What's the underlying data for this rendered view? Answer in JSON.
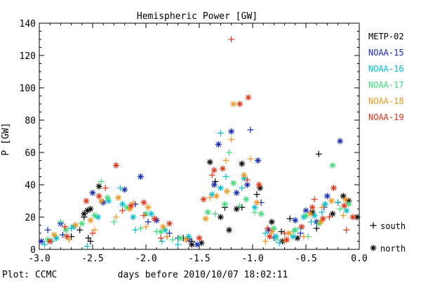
{
  "chart_data": {
    "type": "scatter",
    "title": "Hemispheric Power [GW]",
    "ylabel": "P [GW]",
    "xlabel": "days before 2010/10/07 18:02:11",
    "footer": "Plot: CCMC",
    "xlim": [
      -3.0,
      0.0
    ],
    "ylim": [
      0,
      140
    ],
    "x_ticks": [
      -3.0,
      -2.5,
      -2.0,
      -1.5,
      -1.0,
      -0.5,
      0.0
    ],
    "x_tick_labels": [
      "-3.0",
      "-2.5",
      "-2.0",
      "-1.5",
      "-1.0",
      "-0.5",
      "0.0"
    ],
    "y_ticks": [
      0,
      20,
      40,
      60,
      80,
      100,
      120,
      140
    ],
    "y_tick_labels": [
      "0",
      "20",
      "40",
      "60",
      "80",
      "100",
      "120",
      "140"
    ],
    "marker_legend": [
      {
        "symbol": "+",
        "label": "south"
      },
      {
        "symbol": "*",
        "label": "north"
      }
    ],
    "series": [
      {
        "name": "METP-02",
        "color": "#000000",
        "south": [
          [
            -2.7,
            8
          ],
          [
            -2.62,
            12
          ],
          [
            -2.58,
            20
          ],
          [
            -2.54,
            7
          ],
          [
            -2.52,
            5
          ],
          [
            -1.8,
            8
          ],
          [
            -1.65,
            7
          ],
          [
            -1.57,
            5
          ],
          [
            -1.35,
            42
          ],
          [
            -1.26,
            26
          ],
          [
            -1.1,
            26
          ],
          [
            -0.96,
            34
          ],
          [
            -0.73,
            11
          ],
          [
            -0.65,
            19
          ],
          [
            -0.4,
            13
          ],
          [
            -0.38,
            59
          ],
          [
            -0.2,
            29
          ]
        ],
        "north": [
          [
            -2.58,
            22
          ],
          [
            -2.55,
            24
          ],
          [
            -2.52,
            25
          ],
          [
            -2.44,
            39
          ],
          [
            -1.57,
            3
          ],
          [
            -1.48,
            4
          ],
          [
            -1.4,
            54
          ],
          [
            -1.3,
            20
          ],
          [
            -1.22,
            12
          ],
          [
            -1.15,
            25
          ],
          [
            -1.1,
            53
          ],
          [
            -0.93,
            38
          ],
          [
            -0.82,
            17
          ],
          [
            -0.72,
            5
          ],
          [
            -0.58,
            7
          ],
          [
            -0.44,
            23
          ],
          [
            -0.25,
            22
          ],
          [
            -0.15,
            33
          ],
          [
            -0.1,
            30
          ],
          [
            -0.02,
            20
          ]
        ]
      },
      {
        "name": "NOAA-15",
        "color": "#1428be",
        "south": [
          [
            -2.92,
            12
          ],
          [
            -2.78,
            9
          ],
          [
            -2.1,
            28
          ],
          [
            -1.98,
            17
          ],
          [
            -1.78,
            10
          ],
          [
            -1.7,
            7
          ],
          [
            -1.02,
            74
          ],
          [
            -0.92,
            29
          ],
          [
            -0.8,
            7
          ],
          [
            -0.55,
            10
          ],
          [
            -0.33,
            26
          ]
        ],
        "north": [
          [
            -2.98,
            5
          ],
          [
            -2.8,
            16
          ],
          [
            -2.5,
            35
          ],
          [
            -2.4,
            29
          ],
          [
            -2.2,
            37
          ],
          [
            -2.05,
            45
          ],
          [
            -1.9,
            18
          ],
          [
            -1.6,
            6
          ],
          [
            -1.52,
            3
          ],
          [
            -1.36,
            40
          ],
          [
            -1.32,
            65
          ],
          [
            -1.2,
            73
          ],
          [
            -1.15,
            35
          ],
          [
            -1.05,
            40
          ],
          [
            -0.95,
            55
          ],
          [
            -0.85,
            12
          ],
          [
            -0.6,
            18
          ],
          [
            -0.5,
            24
          ],
          [
            -0.4,
            17
          ],
          [
            -0.3,
            33
          ],
          [
            -0.18,
            67
          ]
        ]
      },
      {
        "name": "NOAA-16",
        "color": "#00bed2",
        "south": [
          [
            -2.95,
            3
          ],
          [
            -2.88,
            5
          ],
          [
            -2.7,
            13
          ],
          [
            -2.55,
            2
          ],
          [
            -2.24,
            38
          ],
          [
            -2.1,
            12
          ],
          [
            -1.85,
            5
          ],
          [
            -1.7,
            3
          ],
          [
            -1.3,
            72
          ],
          [
            -1.25,
            45
          ],
          [
            -1.1,
            38
          ],
          [
            -0.88,
            10
          ],
          [
            -0.75,
            4
          ],
          [
            -0.55,
            13
          ],
          [
            -0.45,
            17
          ],
          [
            -0.35,
            23
          ],
          [
            -0.2,
            29
          ]
        ],
        "north": [
          [
            -2.84,
            7
          ],
          [
            -2.68,
            14
          ],
          [
            -2.45,
            20
          ],
          [
            -2.35,
            30
          ],
          [
            -2.22,
            28
          ],
          [
            -2.12,
            20
          ],
          [
            -1.95,
            22
          ],
          [
            -1.82,
            12
          ],
          [
            -1.6,
            8
          ],
          [
            -1.38,
            34
          ],
          [
            -1.3,
            38
          ],
          [
            -1.08,
            44
          ],
          [
            -0.98,
            26
          ],
          [
            -0.78,
            8
          ],
          [
            -0.62,
            8
          ],
          [
            -0.52,
            20
          ],
          [
            -0.42,
            21
          ],
          [
            -0.32,
            28
          ],
          [
            -0.12,
            24
          ]
        ]
      },
      {
        "name": "NOAA-17",
        "color": "#3cdc78",
        "south": [
          [
            -2.8,
            17
          ],
          [
            -2.42,
            42
          ],
          [
            -2.3,
            17
          ],
          [
            -2.05,
            13
          ],
          [
            -1.9,
            11
          ],
          [
            -1.75,
            6
          ],
          [
            -1.35,
            22
          ],
          [
            -1.22,
            60
          ],
          [
            -1.12,
            27
          ],
          [
            -0.98,
            23
          ],
          [
            -0.78,
            6
          ],
          [
            -0.62,
            11
          ],
          [
            -0.48,
            8
          ],
          [
            -0.18,
            25
          ]
        ],
        "north": [
          [
            -2.92,
            6
          ],
          [
            -2.75,
            12
          ],
          [
            -2.6,
            16
          ],
          [
            -2.48,
            21
          ],
          [
            -2.36,
            32
          ],
          [
            -2.18,
            26
          ],
          [
            -2.0,
            22
          ],
          [
            -1.86,
            11
          ],
          [
            -1.68,
            7
          ],
          [
            -1.42,
            23
          ],
          [
            -1.26,
            28
          ],
          [
            -1.18,
            41
          ],
          [
            -1.06,
            31
          ],
          [
            -0.92,
            22
          ],
          [
            -0.8,
            13
          ],
          [
            -0.6,
            12
          ],
          [
            -0.5,
            21
          ],
          [
            -0.38,
            16
          ],
          [
            -0.25,
            52
          ],
          [
            -0.1,
            28
          ]
        ]
      },
      {
        "name": "NOAA-18",
        "color": "#f0961e",
        "south": [
          [
            -2.72,
            6
          ],
          [
            -2.48,
            12
          ],
          [
            -2.28,
            20
          ],
          [
            -2.12,
            29
          ],
          [
            -2.0,
            14
          ],
          [
            -1.8,
            8
          ],
          [
            -1.4,
            32
          ],
          [
            -1.25,
            55
          ],
          [
            -1.2,
            68
          ],
          [
            -1.02,
            56
          ],
          [
            -0.88,
            5
          ],
          [
            -0.7,
            5
          ],
          [
            -0.52,
            8
          ],
          [
            -0.35,
            26
          ],
          [
            -0.15,
            21
          ]
        ],
        "north": [
          [
            -2.86,
            9
          ],
          [
            -2.66,
            15
          ],
          [
            -2.52,
            18
          ],
          [
            -2.42,
            30
          ],
          [
            -2.26,
            32
          ],
          [
            -2.15,
            25
          ],
          [
            -1.98,
            26
          ],
          [
            -1.84,
            14
          ],
          [
            -1.62,
            6
          ],
          [
            -1.44,
            19
          ],
          [
            -1.34,
            33
          ],
          [
            -1.24,
            36
          ],
          [
            -1.18,
            90
          ],
          [
            -1.08,
            46
          ],
          [
            -0.96,
            29
          ],
          [
            -0.82,
            11
          ],
          [
            -0.66,
            10
          ],
          [
            -0.46,
            22
          ],
          [
            -0.36,
            17
          ],
          [
            -0.26,
            30
          ],
          [
            -0.13,
            31
          ]
        ]
      },
      {
        "name": "NOAA-19",
        "color": "#e63214",
        "south": [
          [
            -2.76,
            14
          ],
          [
            -2.5,
            10
          ],
          [
            -2.38,
            38
          ],
          [
            -2.22,
            24
          ],
          [
            -2.02,
            21
          ],
          [
            -1.86,
            7
          ],
          [
            -1.38,
            46
          ],
          [
            -1.2,
            130
          ],
          [
            -1.05,
            43
          ],
          [
            -0.86,
            13
          ],
          [
            -0.7,
            10
          ],
          [
            -0.42,
            31
          ],
          [
            -0.28,
            20
          ],
          [
            -0.12,
            12
          ]
        ],
        "north": [
          [
            -2.9,
            5
          ],
          [
            -2.74,
            8
          ],
          [
            -2.56,
            30
          ],
          [
            -2.44,
            33
          ],
          [
            -2.28,
            52
          ],
          [
            -2.14,
            27
          ],
          [
            -2.02,
            29
          ],
          [
            -1.92,
            19
          ],
          [
            -1.78,
            16
          ],
          [
            -1.5,
            7
          ],
          [
            -1.46,
            31
          ],
          [
            -1.36,
            49
          ],
          [
            -1.28,
            50
          ],
          [
            -1.12,
            90
          ],
          [
            -1.04,
            94
          ],
          [
            -0.94,
            40
          ],
          [
            -0.84,
            8
          ],
          [
            -0.68,
            6
          ],
          [
            -0.54,
            14
          ],
          [
            -0.44,
            26
          ],
          [
            -0.34,
            19
          ],
          [
            -0.24,
            38
          ],
          [
            -0.14,
            27
          ],
          [
            -0.06,
            20
          ]
        ]
      }
    ]
  }
}
